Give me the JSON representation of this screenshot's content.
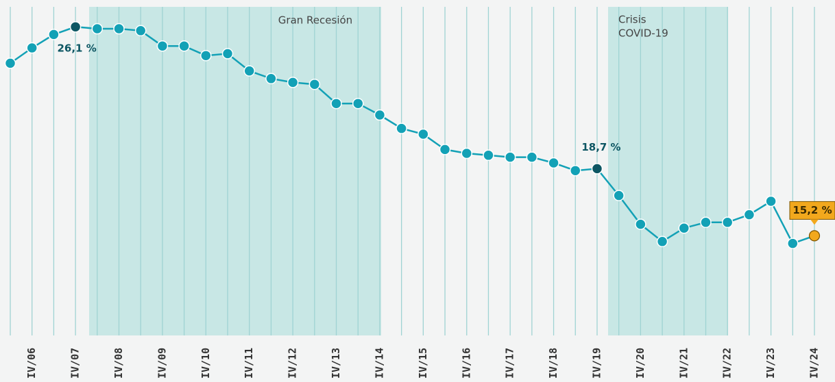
{
  "chart_data": {
    "type": "line",
    "categories": [
      null,
      "IV/06",
      null,
      "IV/07",
      null,
      "IV/08",
      null,
      "IV/09",
      null,
      "IV/10",
      null,
      "IV/11",
      null,
      "IV/12",
      null,
      "IV/13",
      null,
      "IV/14",
      null,
      "IV/15",
      null,
      "IV/16",
      null,
      "IV/17",
      null,
      "IV/18",
      null,
      "IV/19",
      null,
      "IV/20",
      null,
      "IV/21",
      null,
      "IV/22",
      null,
      "IV/23",
      null,
      "IV/24"
    ],
    "series": [
      {
        "color": "#13a1b6",
        "values": [
          24.2,
          25.0,
          25.7,
          26.1,
          26.0,
          26.0,
          25.9,
          25.1,
          25.1,
          24.6,
          24.7,
          23.8,
          23.4,
          23.2,
          23.1,
          22.1,
          22.1,
          21.5,
          20.8,
          20.5,
          19.7,
          19.5,
          19.4,
          19.3,
          19.3,
          19.0,
          18.6,
          18.7,
          17.3,
          15.8,
          14.9,
          15.6,
          15.9,
          15.9,
          16.3,
          17.0,
          14.8,
          15.2
        ],
        "value_labels": [
          null,
          null,
          null,
          "26,1 %",
          null,
          null,
          null,
          null,
          null,
          null,
          null,
          null,
          null,
          null,
          null,
          null,
          null,
          null,
          null,
          null,
          null,
          null,
          null,
          null,
          null,
          null,
          null,
          "18,7 %",
          null,
          null,
          null,
          null,
          null,
          null,
          null,
          null,
          null,
          "15,2 %"
        ]
      }
    ],
    "highlight_color": "#0d5663",
    "latest_color": "#f2a81d",
    "annotations": [
      {
        "label": "Gran Recesión"
      },
      {
        "label": "Crisis",
        "label2": "COVID-19"
      }
    ],
    "ylim": [
      10,
      27.5
    ]
  }
}
